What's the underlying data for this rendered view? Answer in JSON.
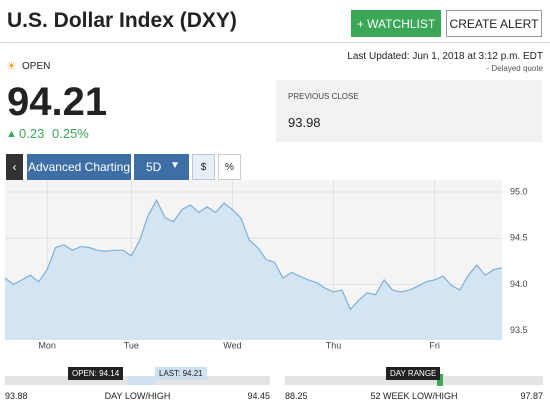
{
  "header": {
    "title": "U.S. Dollar Index (DXY)",
    "buttons": [
      "+ WATCHLIST",
      "CREATE ALERT"
    ],
    "last_updated": "Last Updated: Jun 1, 2018 at 3:12 p.m. EDT",
    "delayed": "- Delayed quote"
  },
  "quote": {
    "status": "OPEN",
    "price": "94.21",
    "change": "0.23",
    "change_pct": "0.25%",
    "previous_close_label": "PREVIOUS CLOSE",
    "previous_close": "93.98"
  },
  "toolbar": {
    "buttons": [
      "Advanced Charting",
      "5D",
      "$",
      "%"
    ]
  },
  "chart_data": {
    "type": "line",
    "color": "#7fb0d8",
    "fill": "#d3e4f2",
    "values": [
      94.07,
      94.0,
      94.05,
      94.1,
      94.03,
      94.16,
      94.4,
      94.43,
      94.37,
      94.41,
      94.4,
      94.37,
      94.36,
      94.37,
      94.37,
      94.31,
      94.48,
      94.75,
      94.91,
      94.72,
      94.68,
      94.81,
      94.86,
      94.78,
      94.84,
      94.78,
      94.88,
      94.81,
      94.72,
      94.48,
      94.4,
      94.27,
      94.24,
      94.07,
      94.13,
      94.09,
      94.05,
      94.02,
      93.96,
      93.92,
      93.94,
      93.73,
      93.83,
      93.91,
      93.89,
      94.05,
      93.94,
      93.92,
      93.94,
      93.98,
      94.03,
      94.05,
      94.09,
      93.99,
      93.94,
      94.1,
      94.21,
      94.1,
      94.16,
      94.18
    ],
    "xlim": [
      0,
      59
    ],
    "xticks": [
      {
        "value": 5,
        "label": "Mon"
      },
      {
        "value": 15,
        "label": "Tue"
      },
      {
        "value": 27,
        "label": "Wed"
      },
      {
        "value": 39,
        "label": "Thu"
      },
      {
        "value": 51,
        "label": "Fri"
      }
    ],
    "ylim": [
      93.4,
      95.13
    ],
    "yticks": [
      {
        "value": 95,
        "label": "95.0"
      },
      {
        "value": 94.5,
        "label": "94.5"
      },
      {
        "value": 94,
        "label": "94.0"
      },
      {
        "value": 93.5,
        "label": "93.5"
      }
    ],
    "grid": true
  },
  "ranges": [
    {
      "label": "DAY LOW/HIGH",
      "low": "93.88",
      "high": "94.45",
      "markers": [
        "OPEN: 94.14",
        "LAST: 94.21"
      ]
    },
    {
      "label": "52 WEEK LOW/HIGH",
      "low": "88.25",
      "high": "97.87",
      "markers": [
        "DAY RANGE"
      ]
    }
  ]
}
